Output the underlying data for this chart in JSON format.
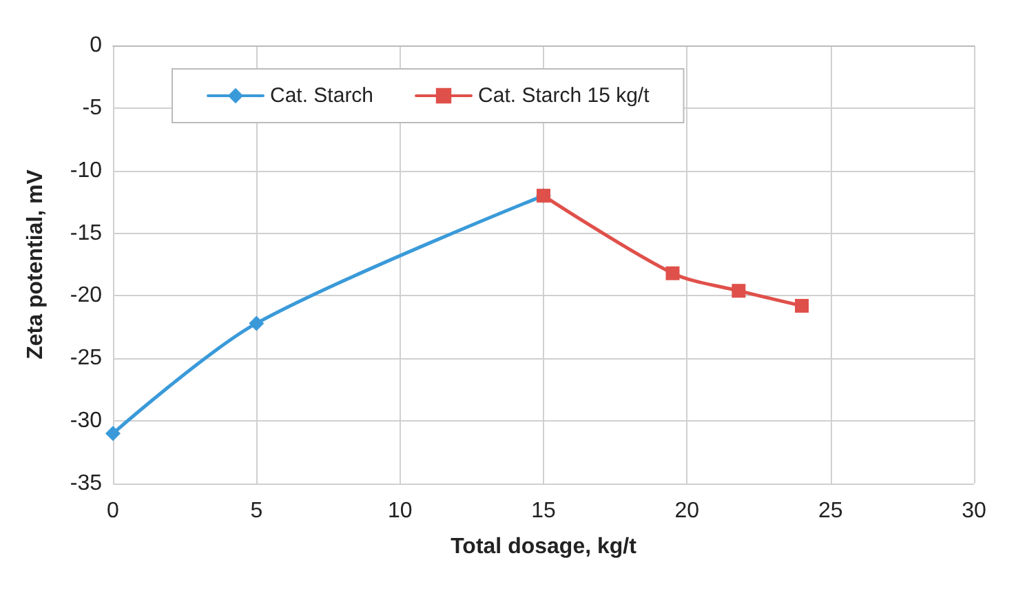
{
  "chart_data": {
    "type": "line",
    "xlabel": "Total dosage, kg/t",
    "ylabel": "Zeta potential, mV",
    "series": [
      {
        "name": "Cat. Starch",
        "color": "#3a9ad9",
        "marker": "diamond",
        "x": [
          0,
          5,
          15
        ],
        "values": [
          -31,
          -22.2,
          -12
        ]
      },
      {
        "name": "Cat. Starch 15 kg/t",
        "color": "#e0504a",
        "marker": "square",
        "x": [
          15,
          19.5,
          21.8,
          24
        ],
        "values": [
          -12,
          -18.2,
          -19.6,
          -20.8
        ]
      }
    ],
    "xlim": [
      0,
      30
    ],
    "xticks": [
      0,
      5,
      10,
      15,
      20,
      25,
      30
    ],
    "ylim": [
      -35,
      0
    ],
    "yticks": [
      -35,
      -30,
      -25,
      -20,
      -15,
      -10,
      -5,
      0
    ],
    "grid": true,
    "legend": "top",
    "line_style": "solid"
  }
}
